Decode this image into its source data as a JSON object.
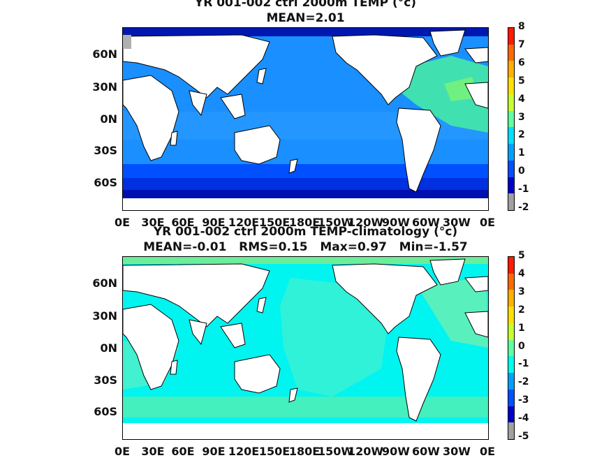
{
  "panels": [
    {
      "title_line1": "YR 001-002 ctrl 2000m TEMP (°c)",
      "title_line2": "MEAN=2.01",
      "colorbar": {
        "labels": [
          "8",
          "7",
          "6",
          "5",
          "4",
          "3",
          "2",
          "1",
          "0",
          "-1",
          "-2"
        ],
        "colors": [
          "#ff1a00",
          "#ff6a00",
          "#ffb000",
          "#ffe000",
          "#c8ff30",
          "#60ffa0",
          "#00e0ff",
          "#00a0ff",
          "#0050ff",
          "#0000c8",
          "#a0a0a0"
        ]
      },
      "ocean_palette": {
        "ocean": "#1a8fff",
        "deep_south": "#0040ff",
        "southern": "#0018b0",
        "atlantic": "#40e0b0",
        "band": "#3aa0ff"
      }
    },
    {
      "title_line1": "YR 001-002 ctrl 2000m TEMP-climatology (°c)",
      "title_line2": "MEAN=-0.01   RMS=0.15   Max=0.97   Min=-1.57",
      "colorbar": {
        "labels": [
          "5",
          "4",
          "3",
          "2",
          "1",
          "0",
          "-1",
          "-2",
          "-3",
          "-4",
          "-5"
        ],
        "colors": [
          "#ff1a00",
          "#ff6a00",
          "#ffb000",
          "#ffe000",
          "#c8ff30",
          "#60ffa0",
          "#00ffee",
          "#00a0ff",
          "#0050ff",
          "#0000c8",
          "#a0a0a0"
        ]
      },
      "ocean_palette": {
        "ocean": "#00f4f0",
        "patch": "#60f0c0",
        "deep_south": "#40e8b0",
        "southern": "#6aee9a",
        "atlantic": "#6ef0b0",
        "band": "#20ead8"
      }
    }
  ],
  "axes": {
    "lat_labels": [
      "60N",
      "30N",
      "0N",
      "30S",
      "60S"
    ],
    "lon_labels": [
      "0E",
      "30E",
      "60E",
      "90E",
      "120E",
      "150E",
      "180E",
      "150W",
      "120W",
      "90W",
      "60W",
      "30W",
      "0E"
    ]
  }
}
